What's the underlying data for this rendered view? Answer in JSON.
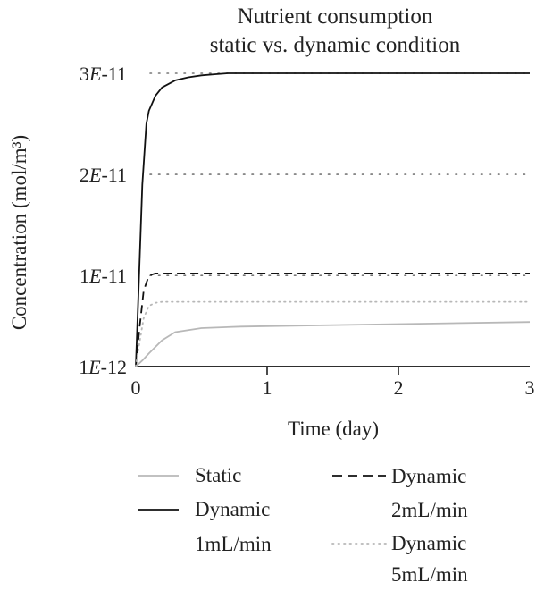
{
  "chart_data": {
    "type": "line",
    "title": [
      "Nutrient consumption",
      "static vs. dynamic condition"
    ],
    "xlabel": "Time (day)",
    "ylabel": "Concentration (mol/m³)",
    "x_ticks": [
      "0",
      "1",
      "2",
      "3"
    ],
    "y_ticks": [
      {
        "coef": "1",
        "exp": "12",
        "value": 1e-12
      },
      {
        "coef": "1",
        "exp": "11",
        "value": 1e-11
      },
      {
        "coef": "2",
        "exp": "11",
        "value": 2e-11
      },
      {
        "coef": "3",
        "exp": "11",
        "value": 3e-11
      }
    ],
    "xlim": [
      0,
      3
    ],
    "ylim": [
      1e-12,
      3e-11
    ],
    "grid": "dotted horizontal at y ticks",
    "legend_position": "bottom",
    "series": [
      {
        "name": "Static",
        "color": "#b8b8b8",
        "dash": "solid",
        "x": [
          0,
          0.05,
          0.1,
          0.2,
          0.3,
          0.5,
          0.8,
          1,
          2,
          3
        ],
        "y": [
          1e-12,
          1.6e-12,
          2.3e-12,
          3.6e-12,
          4.4e-12,
          4.8e-12,
          4.95e-12,
          5e-12,
          5.2e-12,
          5.4e-12
        ]
      },
      {
        "name": "Dynamic 1mL/min",
        "color": "#111111",
        "dash": "solid",
        "x": [
          0,
          0.02,
          0.05,
          0.08,
          0.1,
          0.15,
          0.2,
          0.3,
          0.4,
          0.5,
          0.6,
          0.7,
          1,
          2,
          3
        ],
        "y": [
          1e-12,
          8e-12,
          1.9e-11,
          2.5e-11,
          2.63e-11,
          2.78e-11,
          2.86e-11,
          2.93e-11,
          2.96e-11,
          2.98e-11,
          2.99e-11,
          3e-11,
          3e-11,
          3e-11,
          3e-11
        ]
      },
      {
        "name": "Dynamic 2mL/min",
        "color": "#111111",
        "dash": "dashed",
        "x": [
          0,
          0.03,
          0.06,
          0.1,
          0.15,
          0.2,
          1,
          2,
          3
        ],
        "y": [
          1e-12,
          5e-12,
          8.5e-12,
          1e-11,
          1.02e-11,
          1.02e-11,
          1.02e-11,
          1.02e-11,
          1.02e-11
        ]
      },
      {
        "name": "Dynamic 5mL/min",
        "color": "#b8b8b8",
        "dash": "dotted",
        "x": [
          0,
          0.03,
          0.06,
          0.1,
          0.15,
          0.2,
          1,
          2,
          3
        ],
        "y": [
          1e-12,
          3.5e-12,
          5.8e-12,
          7e-12,
          7.3e-12,
          7.4e-12,
          7.4e-12,
          7.4e-12,
          7.4e-12
        ]
      }
    ],
    "legend": [
      {
        "line1": "Static",
        "line2": ""
      },
      {
        "line1": "Dynamic",
        "line2": "1mL/min"
      },
      {
        "line1": "Dynamic",
        "line2": "2mL/min"
      },
      {
        "line1": "Dynamic",
        "line2": "5mL/min"
      }
    ]
  }
}
